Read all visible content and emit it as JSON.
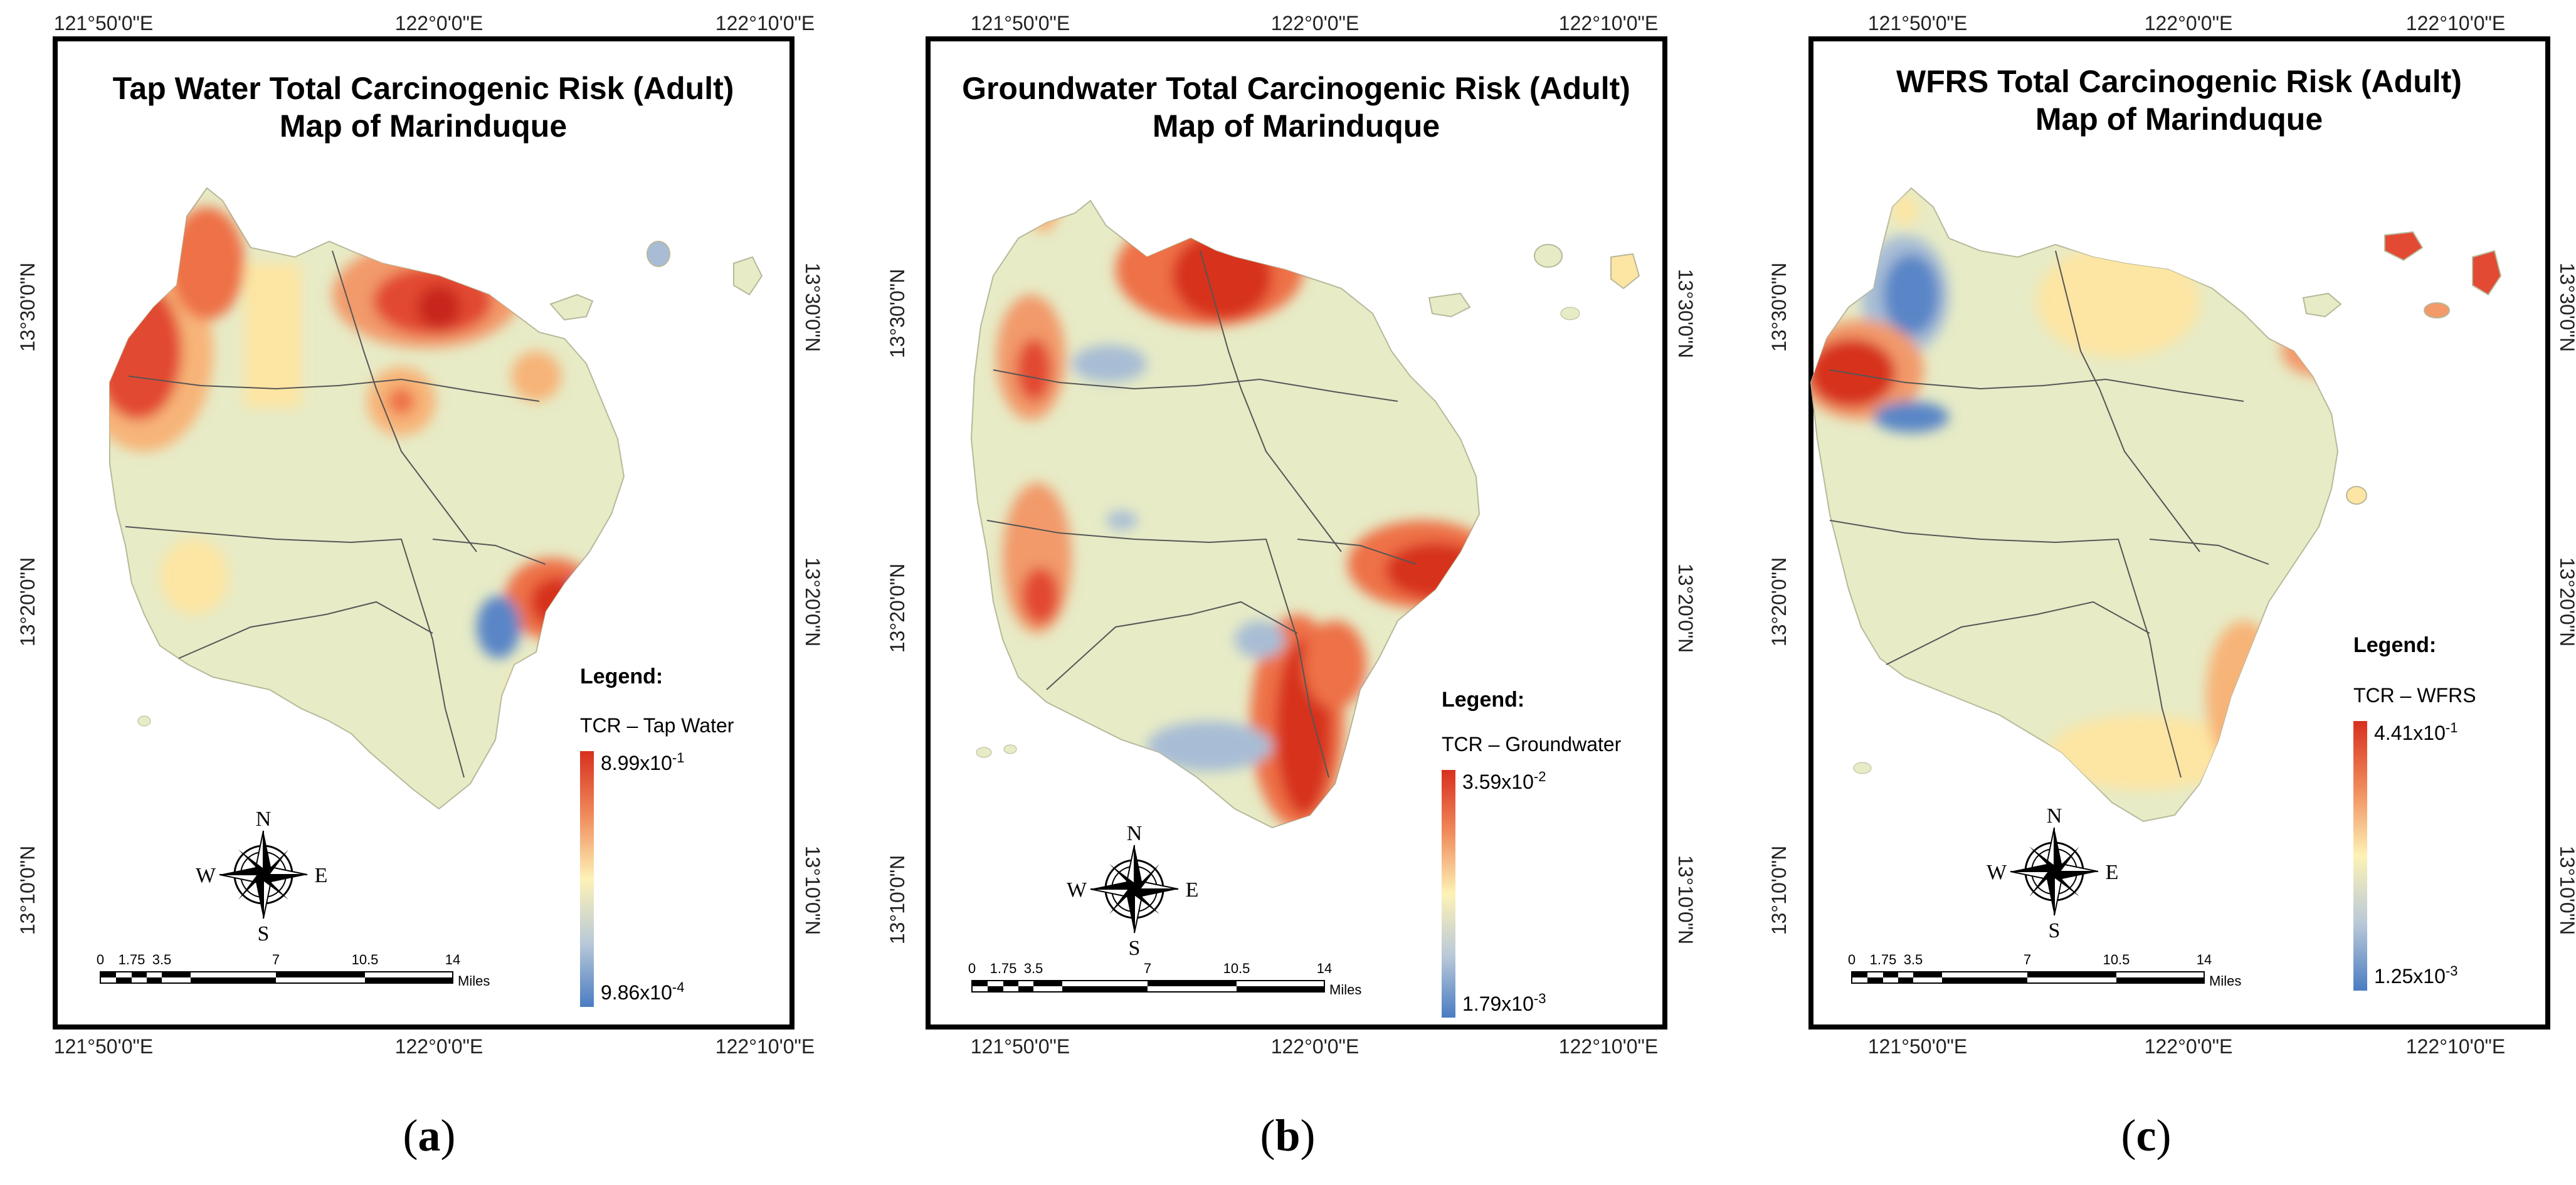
{
  "colors": {
    "land": "#e7ebc6",
    "high_risk": "#d7301f",
    "mid_high": "#ee7147",
    "mid": "#f7b478",
    "mid_low": "#fde5a3",
    "low": "#5a86c7",
    "low_mid": "#a8bdd5",
    "border": "#000000"
  },
  "axes": {
    "lon_ticks": [
      "121°50'0\"E",
      "122°0'0\"E",
      "122°10'0\"E"
    ],
    "lat_ticks": [
      "13°30'0\"N",
      "13°20'0\"N",
      "13°10'0\"N"
    ]
  },
  "compass": {
    "n": "N",
    "s": "S",
    "e": "E",
    "w": "W"
  },
  "scale_bar": {
    "ticks": [
      "0",
      "1.75",
      "3.5",
      "7",
      "10.5",
      "14"
    ],
    "unit": "Miles"
  },
  "panels": [
    {
      "title_line1": "Tap Water Total Carcinogenic Risk (Adult)",
      "title_line2": "Map of Marinduque",
      "legend_heading": "Legend:",
      "legend_label": "TCR – Tap Water",
      "legend_max_mantissa": "8.99x10",
      "legend_max_exp": "-1",
      "legend_min_mantissa": "9.86x10",
      "legend_min_exp": "-4",
      "caption_open": "(",
      "caption_letter": "a",
      "caption_close": ")"
    },
    {
      "title_line1": "Groundwater Total Carcinogenic Risk (Adult)",
      "title_line2": "Map of Marinduque",
      "legend_heading": "Legend:",
      "legend_label": "TCR – Groundwater",
      "legend_max_mantissa": "3.59x10",
      "legend_max_exp": "-2",
      "legend_min_mantissa": "1.79x10",
      "legend_min_exp": "-3",
      "caption_open": "(",
      "caption_letter": "b",
      "caption_close": ")"
    },
    {
      "title_line1": "WFRS Total Carcinogenic Risk (Adult)",
      "title_line2": "Map of Marinduque",
      "legend_heading": "Legend:",
      "legend_label": "TCR – WFRS",
      "legend_max_mantissa": "4.41x10",
      "legend_max_exp": "-1",
      "legend_min_mantissa": "1.25x10",
      "legend_min_exp": "-3",
      "caption_open": "(",
      "caption_letter": "c",
      "caption_close": ")"
    }
  ]
}
